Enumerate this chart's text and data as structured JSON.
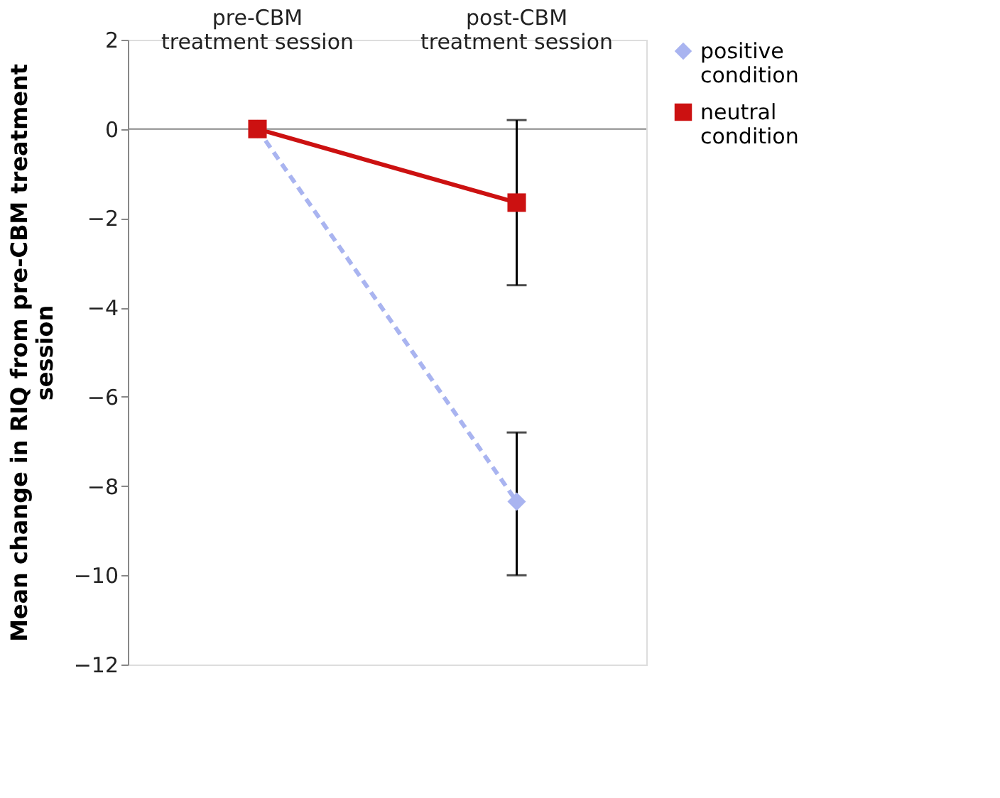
{
  "chart_data": {
    "type": "line",
    "ylabel": "Mean change in RIQ from pre-CBM treatment session",
    "categories": [
      "pre-CBM treatment session",
      "post-CBM treatment session"
    ],
    "series": [
      {
        "name": "positive condition",
        "color": "#a9b4f0",
        "values": [
          0,
          -8.35
        ],
        "errors": [
          null,
          [
            -10.0,
            -6.8
          ]
        ],
        "marker": "diamond",
        "line_style": "dashed"
      },
      {
        "name": "neutral condition",
        "color": "#cc1111",
        "values": [
          0,
          -1.65
        ],
        "errors": [
          null,
          [
            -3.5,
            0.2
          ]
        ],
        "marker": "square",
        "line_style": "solid"
      }
    ],
    "ylim": [
      -12,
      2
    ],
    "yticks": [
      -12,
      -10,
      -8,
      -6,
      -4,
      -2,
      0,
      2
    ],
    "ref_lines": [
      {
        "axis": "y",
        "value": 0,
        "color": "#888888"
      }
    ],
    "grid": false,
    "legend": "right"
  }
}
